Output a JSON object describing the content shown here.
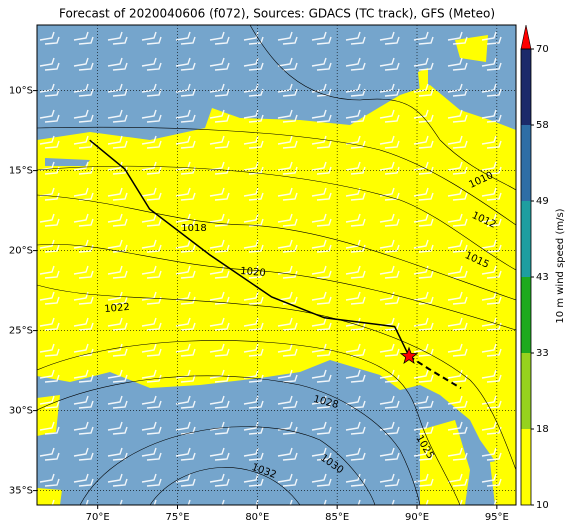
{
  "chart_data": {
    "type": "map",
    "title": "Forecast of 2020040606 (f072), Sources: GDACS (TC track), GFS (Meteo)",
    "xlim": [
      66.2,
      96.2
    ],
    "ylim": [
      -35.9,
      -5.9
    ],
    "xticks": [
      {
        "value": 70,
        "label": "70°E"
      },
      {
        "value": 75,
        "label": "75°E"
      },
      {
        "value": 80,
        "label": "80°E"
      },
      {
        "value": 85,
        "label": "85°E"
      },
      {
        "value": 90,
        "label": "90°E"
      },
      {
        "value": 95,
        "label": "95°E"
      }
    ],
    "yticks": [
      {
        "value": -10,
        "label": "10°S"
      },
      {
        "value": -15,
        "label": "15°S"
      },
      {
        "value": -20,
        "label": "20°S"
      },
      {
        "value": -25,
        "label": "25°S"
      },
      {
        "value": -30,
        "label": "30°S"
      },
      {
        "value": -35,
        "label": "35°S"
      }
    ],
    "grid": true,
    "track": {
      "color": "#000000",
      "lon": [
        69.5,
        71.7,
        73.25,
        77.0,
        80.9,
        84.2,
        88.6,
        89.5
      ],
      "lat": [
        -13.1,
        -14.9,
        -17.4,
        -20.25,
        -22.9,
        -24.2,
        -24.75,
        -26.6
      ]
    },
    "forecast_track": {
      "color": "#000000",
      "lon": [
        89.5,
        90.75,
        92.75
      ],
      "lat": [
        -26.6,
        -27.4,
        -28.6
      ]
    },
    "position": {
      "color": "#ff0000",
      "lon": 89.5,
      "lat": -26.6
    },
    "isobar_labels": [
      "1010",
      "1012",
      "1015",
      "1018",
      "1020",
      "1022",
      "1025",
      "1028",
      "1030",
      "1032"
    ],
    "colorbar": {
      "label": "10 m wind speed (m/s)",
      "ticks": [
        10,
        18,
        33,
        43,
        49,
        58,
        70
      ],
      "colors": [
        "#ffff00",
        "#96d21e",
        "#1eaa1e",
        "#1e9ea0",
        "#2e6ea6",
        "#1c2a6a"
      ],
      "extend_color": "#ff0000"
    }
  }
}
